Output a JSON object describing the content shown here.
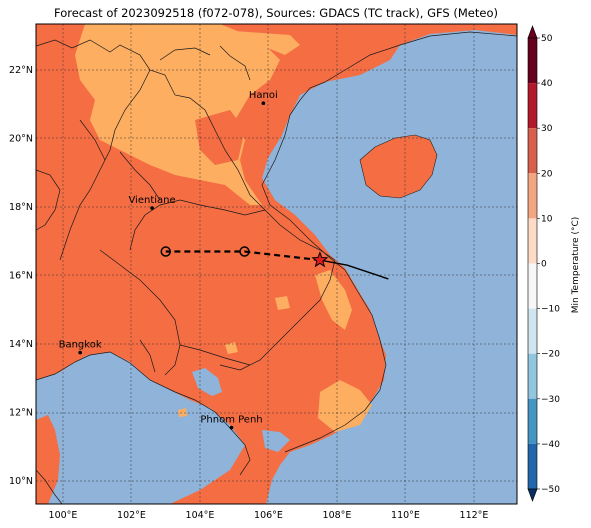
{
  "title": "Forecast of 2023092518 (f072-078), Sources: GDACS (TC track), GFS (Meteo)",
  "lon_ticks": [
    "100°E",
    "102°E",
    "104°E",
    "106°E",
    "108°E",
    "110°E",
    "112°E"
  ],
  "lat_ticks": [
    "22°N",
    "20°N",
    "18°N",
    "16°N",
    "14°N",
    "12°N",
    "10°N"
  ],
  "cities": [
    {
      "name": "Hanoi",
      "lon": 105.85,
      "lat": 21.03
    },
    {
      "name": "Vientiane",
      "lon": 102.6,
      "lat": 17.97
    },
    {
      "name": "Bangkok",
      "lon": 100.5,
      "lat": 13.75
    },
    {
      "name": "Phnom Penh",
      "lon": 104.92,
      "lat": 11.56
    }
  ],
  "track": {
    "past_line": [
      [
        107.5,
        16.45
      ],
      [
        108.3,
        16.3
      ],
      [
        109.5,
        15.9
      ]
    ],
    "forecast_line": [
      [
        107.5,
        16.45
      ],
      [
        105.3,
        16.7
      ],
      [
        103.0,
        16.7
      ]
    ],
    "forecast_positions": [
      [
        105.3,
        16.7
      ],
      [
        103.0,
        16.7
      ]
    ],
    "current_position": [
      107.5,
      16.45
    ]
  },
  "colorbar": {
    "label": "Min Temperature (°C)",
    "ticks": [
      "50",
      "40",
      "30",
      "20",
      "10",
      "0",
      "−10",
      "−20",
      "−30",
      "−40",
      "−50"
    ],
    "colors": [
      "#67001f",
      "#b2182b",
      "#d6604d",
      "#f4a582",
      "#fddbc7",
      "#f7f7f7",
      "#d1e5f0",
      "#92c5de",
      "#4393c3",
      "#2166ac",
      "#053061"
    ],
    "ocean_color": "#8fb3d9",
    "land_warm_color": "#f46d43",
    "land_mild_color": "#fdae61"
  }
}
